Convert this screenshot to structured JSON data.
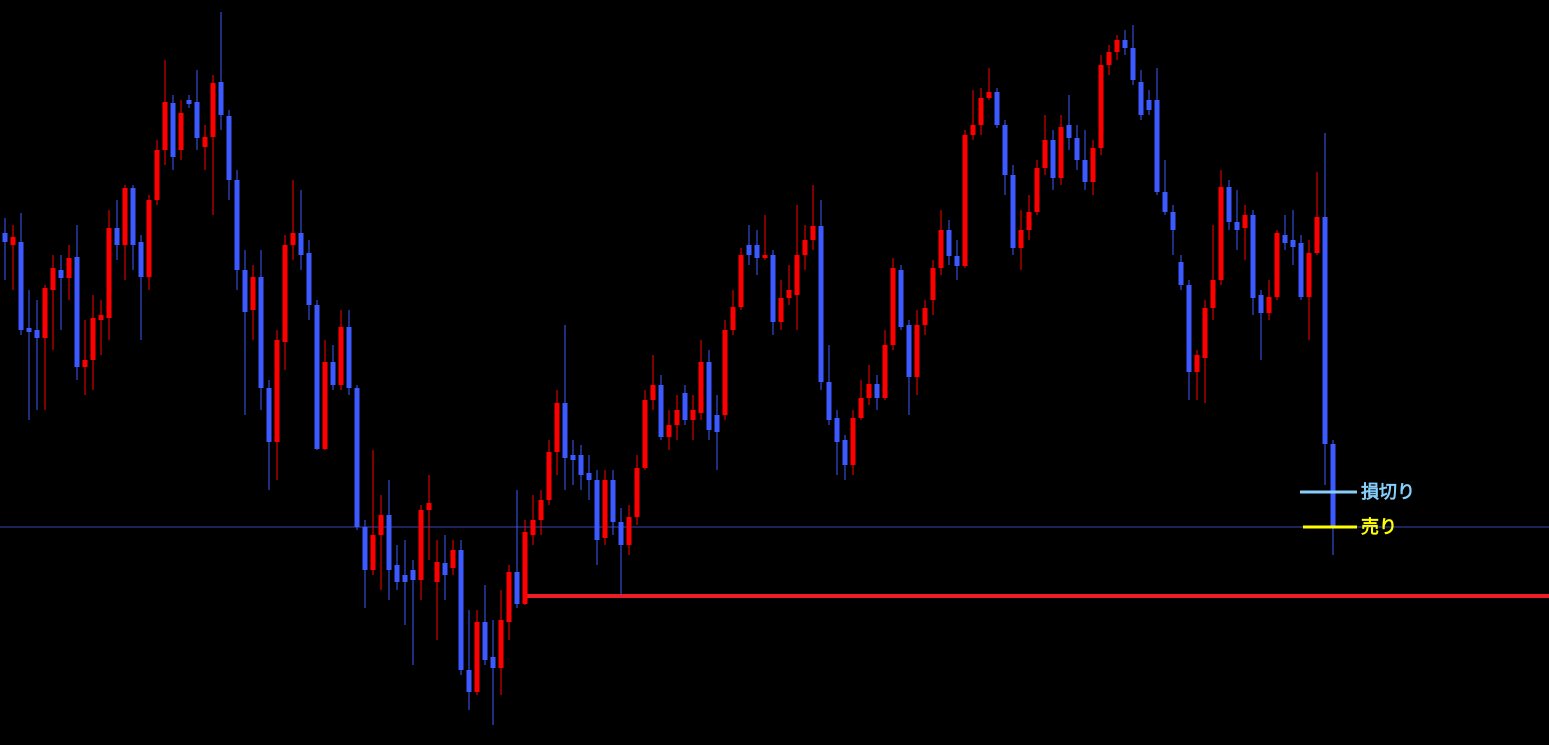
{
  "chart_data": {
    "type": "candlestick",
    "up_color": "#ff0000",
    "down_color": "#3c5aff",
    "ylim": [
      0,
      745
    ],
    "open": [
      512,
      500,
      503,
      417,
      415,
      407,
      455,
      475,
      467,
      488,
      378,
      385,
      425,
      427,
      517,
      500,
      557,
      503,
      468,
      545,
      595,
      642,
      595,
      645,
      643,
      598,
      608,
      663,
      629,
      565,
      475,
      435,
      468,
      357,
      303,
      403,
      500,
      512,
      492,
      440,
      296,
      383,
      360,
      418,
      357,
      218,
      175,
      210,
      230,
      180,
      170,
      175,
      165,
      235,
      163,
      182,
      177,
      195,
      75,
      53,
      123,
      88,
      77,
      123,
      173,
      141,
      210,
      225,
      245,
      293,
      342,
      290,
      290,
      272,
      265,
      207,
      265,
      223,
      200,
      228,
      277,
      345,
      360,
      308,
      320,
      352,
      325,
      332,
      383,
      330,
      330,
      415,
      438,
      500,
      500,
      487,
      490,
      423,
      447,
      450,
      490,
      505,
      519,
      363,
      327,
      305,
      280,
      327,
      347,
      361,
      347,
      400,
      475,
      420,
      368,
      420,
      445,
      477,
      515,
      489,
      479,
      610,
      620,
      647,
      653,
      620,
      570,
      497,
      515,
      533,
      577,
      605,
      567,
      620,
      607,
      585,
      563,
      597,
      680,
      693,
      705,
      697,
      663,
      645,
      645,
      553,
      533,
      483,
      460,
      373,
      387,
      437,
      465,
      558,
      523,
      517,
      530,
      450,
      432,
      448,
      510,
      505,
      502,
      448,
      492,
      528,
      301
    ],
    "high": [
      527,
      520,
      532,
      455,
      445,
      460,
      490,
      490,
      500,
      520,
      425,
      450,
      445,
      535,
      545,
      560,
      560,
      510,
      550,
      605,
      685,
      650,
      645,
      650,
      675,
      620,
      670,
      733,
      635,
      575,
      495,
      480,
      495,
      365,
      415,
      510,
      565,
      555,
      505,
      445,
      405,
      400,
      435,
      435,
      360,
      225,
      295,
      250,
      265,
      200,
      205,
      185,
      240,
      270,
      205,
      210,
      205,
      205,
      135,
      135,
      160,
      125,
      155,
      180,
      255,
      225,
      250,
      255,
      305,
      355,
      420,
      305,
      300,
      290,
      275,
      275,
      275,
      237,
      240,
      290,
      355,
      390,
      370,
      335,
      350,
      360,
      350,
      405,
      395,
      350,
      425,
      455,
      497,
      520,
      515,
      530,
      495,
      465,
      480,
      540,
      520,
      560,
      545,
      400,
      335,
      310,
      335,
      365,
      380,
      370,
      415,
      487,
      480,
      425,
      435,
      445,
      485,
      535,
      525,
      505,
      615,
      655,
      657,
      677,
      657,
      625,
      580,
      535,
      550,
      585,
      630,
      615,
      630,
      650,
      620,
      615,
      605,
      690,
      700,
      710,
      715,
      720,
      675,
      655,
      677,
      585,
      540,
      490,
      465,
      395,
      445,
      520,
      575,
      565,
      555,
      540,
      535,
      455,
      465,
      515,
      530,
      535,
      510,
      505,
      573,
      612,
      305
    ],
    "low": [
      465,
      455,
      410,
      325,
      335,
      335,
      395,
      415,
      445,
      365,
      350,
      355,
      390,
      405,
      485,
      465,
      475,
      405,
      455,
      540,
      580,
      575,
      585,
      637,
      595,
      575,
      530,
      615,
      545,
      455,
      330,
      405,
      335,
      255,
      265,
      375,
      485,
      475,
      425,
      295,
      295,
      355,
      355,
      350,
      215,
      137,
      170,
      155,
      145,
      155,
      120,
      80,
      145,
      185,
      105,
      145,
      170,
      70,
      35,
      50,
      80,
      20,
      50,
      105,
      137,
      140,
      200,
      210,
      240,
      270,
      255,
      260,
      255,
      245,
      180,
      200,
      210,
      150,
      190,
      220,
      275,
      335,
      305,
      295,
      305,
      320,
      305,
      325,
      305,
      275,
      325,
      410,
      435,
      480,
      470,
      485,
      410,
      415,
      440,
      415,
      475,
      495,
      355,
      320,
      270,
      265,
      270,
      325,
      340,
      335,
      345,
      395,
      415,
      330,
      350,
      410,
      430,
      470,
      480,
      465,
      477,
      605,
      610,
      645,
      617,
      550,
      490,
      475,
      505,
      530,
      570,
      555,
      560,
      595,
      575,
      555,
      550,
      590,
      670,
      685,
      690,
      660,
      625,
      630,
      550,
      530,
      490,
      455,
      345,
      345,
      342,
      425,
      460,
      515,
      495,
      485,
      430,
      385,
      425,
      445,
      495,
      480,
      445,
      405,
      490,
      260,
      190
    ],
    "close": [
      503,
      508,
      415,
      413,
      407,
      457,
      477,
      467,
      487,
      378,
      385,
      427,
      430,
      517,
      500,
      557,
      500,
      468,
      545,
      595,
      643,
      588,
      632,
      641,
      607,
      608,
      662,
      630,
      565,
      475,
      433,
      468,
      357,
      303,
      405,
      500,
      512,
      490,
      440,
      296,
      383,
      360,
      418,
      357,
      218,
      175,
      210,
      230,
      175,
      163,
      163,
      165,
      235,
      242,
      183,
      170,
      195,
      75,
      53,
      123,
      85,
      77,
      125,
      173,
      141,
      213,
      225,
      245,
      293,
      342,
      287,
      285,
      270,
      265,
      205,
      265,
      223,
      200,
      228,
      277,
      345,
      360,
      308,
      320,
      335,
      325,
      335,
      383,
      315,
      313,
      415,
      438,
      490,
      490,
      487,
      490,
      423,
      447,
      455,
      490,
      505,
      519,
      363,
      325,
      303,
      280,
      327,
      347,
      361,
      347,
      400,
      477,
      418,
      368,
      420,
      437,
      477,
      515,
      489,
      479,
      610,
      620,
      647,
      653,
      620,
      570,
      497,
      515,
      533,
      577,
      605,
      567,
      618,
      607,
      585,
      563,
      597,
      680,
      693,
      705,
      697,
      665,
      630,
      635,
      553,
      533,
      515,
      460,
      373,
      390,
      437,
      465,
      558,
      523,
      515,
      530,
      447,
      432,
      448,
      512,
      502,
      498,
      448,
      492,
      528,
      301,
      218
    ],
    "hlines": [
      {
        "value": 218,
        "color": "#3a44b0"
      },
      {
        "value": 149,
        "color": "#ee1c24"
      }
    ],
    "annotations": [
      {
        "label": "損切り",
        "value": 253,
        "color": "#87cefa"
      },
      {
        "label": "売り",
        "value": 218,
        "color": "#ffff00"
      }
    ]
  }
}
